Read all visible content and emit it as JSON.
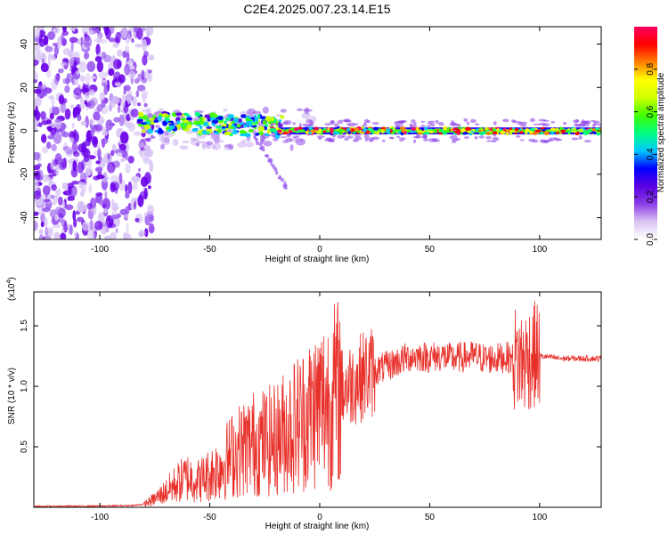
{
  "title": "C2E4.2025.007.23.14.E15",
  "chart_data": [
    {
      "type": "heatmap",
      "title": "C2E4.2025.007.23.14.E15",
      "xlabel": "Height of straight line (km)",
      "ylabel": "Frequency (Hz)",
      "xlim": [
        -130,
        128
      ],
      "ylim": [
        -50,
        48
      ],
      "xticks": [
        -100,
        -50,
        0,
        50,
        100
      ],
      "yticks": [
        -40,
        -20,
        0,
        20,
        40
      ],
      "colorbar": {
        "label": "Normalized spectral amplitude",
        "range": [
          0,
          1
        ],
        "ticks": [
          0.0,
          0.2,
          0.4,
          0.6,
          0.8
        ],
        "tick_labels": [
          "0.0",
          "0.2",
          "0.4",
          "0.6",
          "0.8"
        ],
        "colormap": [
          "#ffffff",
          "#dcc4f2",
          "#8a3ee8",
          "#5a00e0",
          "#0000ff",
          "#00c8ff",
          "#00ff80",
          "#40ff00",
          "#d0ff00",
          "#ffff00",
          "#ff8000",
          "#ff0000",
          "#ff0060"
        ]
      },
      "features": {
        "noise_region_x": [
          -130,
          -82
        ],
        "signal_start_x": -82,
        "carrier_frequency_hz": 0,
        "doppler_tail": {
          "x": [
            -30,
            -15
          ],
          "y": [
            -2,
            -26
          ]
        }
      },
      "grid": false
    },
    {
      "type": "line",
      "xlabel": "Height of straight line (km)",
      "ylabel": "SNR (10 * v/v)",
      "y_multiplier_label": "(x10",
      "y_multiplier_exp": "4",
      "y_multiplier_close": ")",
      "xlim": [
        -130,
        128
      ],
      "ylim": [
        0,
        17800
      ],
      "xticks": [
        -100,
        -50,
        0,
        50,
        100
      ],
      "yticks": [
        5000,
        10000,
        15000
      ],
      "ytick_labels": [
        "0.5",
        "1.0",
        "1.5"
      ],
      "series": [
        {
          "color": "#e8302a",
          "x": [
            -130,
            -100,
            -85,
            -80,
            -75,
            -70,
            -65,
            -60,
            -55,
            -50,
            -45,
            -40,
            -35,
            -30,
            -25,
            -20,
            -15,
            -10,
            -5,
            0,
            5,
            10,
            15,
            20,
            25,
            30,
            35,
            40,
            45,
            50,
            55,
            60,
            65,
            70,
            75,
            80,
            85,
            90,
            93,
            95,
            97,
            100,
            105,
            110,
            115,
            120,
            128
          ],
          "values": [
            80,
            100,
            150,
            250,
            700,
            1300,
            2000,
            2500,
            2200,
            2700,
            3400,
            4300,
            4900,
            5300,
            5400,
            5600,
            6400,
            7000,
            7700,
            8500,
            9000,
            9800,
            10300,
            10900,
            11300,
            11600,
            12000,
            12400,
            12500,
            12400,
            12500,
            12300,
            12400,
            12500,
            12300,
            12300,
            12400,
            12200,
            12000,
            12400,
            12600,
            12500,
            12400,
            12300,
            12300,
            12300,
            12300
          ]
        }
      ],
      "grid": false
    }
  ]
}
